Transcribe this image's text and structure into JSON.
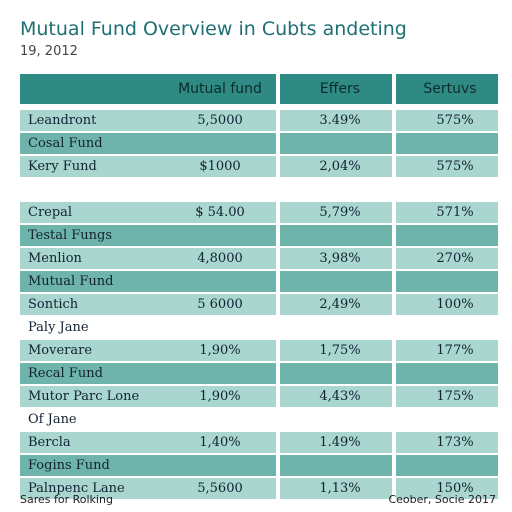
{
  "title": "Mutual Fund Overview in Cubts andeting",
  "subtitle": "19, 2012",
  "table": {
    "headers": [
      "Mutual fund",
      "Effers",
      "Sertuvs"
    ],
    "rows": [
      {
        "name": "Leandront",
        "mf": "5,5000",
        "ef": "3.49%",
        "se": "575%",
        "style": "light"
      },
      {
        "name": "Cosal Fund",
        "mf": "",
        "ef": "",
        "se": "",
        "style": "dark"
      },
      {
        "name": "Kery Fund",
        "mf": "$1000",
        "ef": "2,04%",
        "se": "575%",
        "style": "light"
      },
      {
        "name": "",
        "mf": "",
        "ef": "",
        "se": "",
        "style": "blank"
      },
      {
        "name": "Crepal",
        "mf": "$ 54.00",
        "ef": "5,79%",
        "se": "571%",
        "style": "light"
      },
      {
        "name": "Testal Fungs",
        "mf": "",
        "ef": "",
        "se": "",
        "style": "dark"
      },
      {
        "name": "Menlion",
        "mf": "4,8000",
        "ef": "3,98%",
        "se": "270%",
        "style": "light"
      },
      {
        "name": "Mutual Fund",
        "mf": "",
        "ef": "",
        "se": "",
        "style": "dark"
      },
      {
        "name": "Sontich",
        "mf": "5 6000",
        "ef": "2,49%",
        "se": "100%",
        "style": "light"
      },
      {
        "name": "Paly Jane",
        "mf": "",
        "ef": "",
        "se": "",
        "style": "blank"
      },
      {
        "name": "Moverare",
        "mf": "1,90%",
        "ef": "1,75%",
        "se": "177%",
        "style": "light"
      },
      {
        "name": "Recal Fund",
        "mf": "",
        "ef": "",
        "se": "",
        "style": "dark"
      },
      {
        "name": "Mutor Parc Lone",
        "mf": "1,90%",
        "ef": "4,43%",
        "se": "175%",
        "style": "light"
      },
      {
        "name": "Of Jane",
        "mf": "",
        "ef": "",
        "se": "",
        "style": "blank"
      },
      {
        "name": "Bercla",
        "mf": "1,40%",
        "ef": "1.49%",
        "se": "173%",
        "style": "light"
      },
      {
        "name": "Fogins Fund",
        "mf": "",
        "ef": "",
        "se": "",
        "style": "dark"
      },
      {
        "name": "Palnpenc Lane",
        "mf": "5,5600",
        "ef": "1,13%",
        "se": "150%",
        "style": "light"
      }
    ]
  },
  "footer": {
    "left": "Sares for Rolking",
    "right": "Ceober, Socie 2017"
  },
  "colors": {
    "header_bg": "#2e8a83",
    "row_light": "#a9d6ce",
    "row_dark": "#6fb4ab",
    "title": "#1f6f73"
  }
}
